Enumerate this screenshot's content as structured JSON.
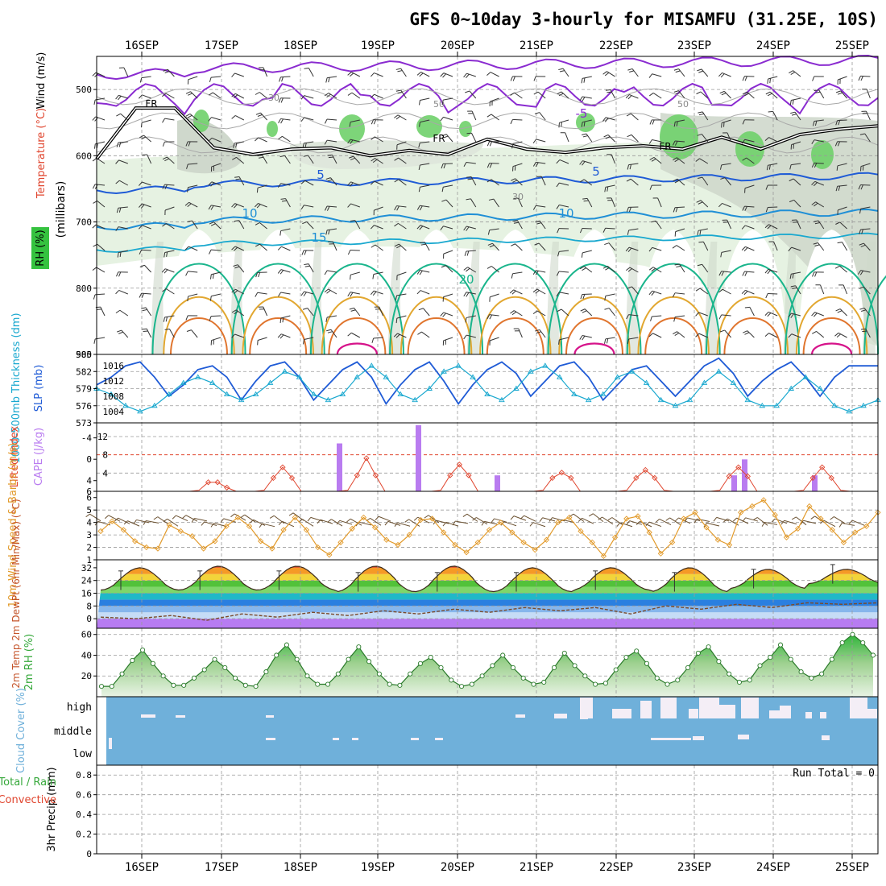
{
  "title": "GFS 0~10day 3-hourly for MISAMFU (31.25E, 10S)",
  "date_labels": [
    "16SEP",
    "17SEP",
    "18SEP",
    "19SEP",
    "20SEP",
    "21SEP",
    "22SEP",
    "23SEP",
    "24SEP",
    "25SEP"
  ],
  "colors": {
    "purple": "#8a2bd0",
    "blue": "#1f5bd6",
    "cyan": "#19a8cf",
    "teal": "#1ab58c",
    "orange": "#e29a2a",
    "red": "#e0452e",
    "green": "#35c23f",
    "ltgreen": "#e6f2e2",
    "gray": "#a8b4a8",
    "cloud": "#6fb0da",
    "magenta": "#d6138a",
    "lilac": "#b97cf0"
  },
  "chart_data": [
    {
      "type": "contour",
      "panel": "upper-air",
      "ylabel": "(millibars)",
      "legend": [
        "Wind (m/s)",
        "Temperature (°C)",
        "RH (%)"
      ],
      "y_ticks": [
        "500",
        "600",
        "700",
        "800",
        "900"
      ],
      "ylim": [
        900,
        450
      ],
      "contour_labels": [
        {
          "text": "FR",
          "color": "black"
        },
        {
          "text": "FR",
          "color": "black"
        },
        {
          "text": "FR",
          "color": "black"
        },
        {
          "text": "-5",
          "color": "purple"
        },
        {
          "text": "5",
          "color": "blue"
        },
        {
          "text": "5",
          "color": "blue"
        },
        {
          "text": "10",
          "color": "cyan"
        },
        {
          "text": "10",
          "color": "cyan"
        },
        {
          "text": "15",
          "color": "cyan"
        },
        {
          "text": "20",
          "color": "teal"
        },
        {
          "text": "30",
          "color": "gray"
        },
        {
          "text": "50",
          "color": "gray"
        },
        {
          "text": "50",
          "color": "gray"
        },
        {
          "text": "30",
          "color": "gray"
        }
      ],
      "freezing_level_mb": [
        605,
        528,
        528,
        588,
        598,
        590,
        588,
        600,
        592,
        598,
        575,
        590,
        595,
        588,
        585,
        590,
        572,
        590,
        568,
        560,
        555
      ],
      "isotherms_mb": {
        "-5": 470,
        "5": 645,
        "10": 700,
        "15": 735,
        "20": 790
      }
    },
    {
      "type": "line",
      "panel": "thickness-slp",
      "ylabel_left": "1000-500mb Thickness (dm)",
      "ylabel_right": "SLP (mb)",
      "left_ticks": [
        "585",
        "582",
        "579",
        "576",
        "573"
      ],
      "right_ticks": [
        "1016",
        "1012",
        "1008",
        "1004"
      ],
      "ylim_left": [
        573,
        585
      ],
      "ylim_right": [
        1001,
        1019
      ],
      "series": [
        {
          "name": "SLP (mb)",
          "color": "blue",
          "values": [
            1011,
            1013,
            1016,
            1017,
            1013,
            1008,
            1011,
            1015,
            1016,
            1013,
            1007,
            1012,
            1016,
            1017,
            1013,
            1007,
            1011,
            1015,
            1017,
            1013,
            1006,
            1011,
            1015,
            1017,
            1012,
            1006,
            1011,
            1015,
            1017,
            1014,
            1008,
            1012,
            1016,
            1017,
            1013,
            1007,
            1011,
            1015,
            1016,
            1012,
            1008,
            1012,
            1016,
            1018,
            1014,
            1008,
            1012,
            1015,
            1017,
            1013,
            1008,
            1013,
            1016,
            1016,
            1016
          ]
        },
        {
          "name": "1000-500mb Thickness (dm)",
          "color": "cyan",
          "values": [
            579,
            578,
            576,
            575,
            576,
            578,
            580,
            581,
            580,
            578,
            577,
            578,
            580,
            582,
            581,
            578,
            577,
            578,
            581,
            583,
            581,
            578,
            577,
            579,
            582,
            583,
            581,
            578,
            577,
            579,
            582,
            583,
            581,
            578,
            577,
            578,
            581,
            582,
            580,
            577,
            576,
            577,
            580,
            582,
            580,
            577,
            576,
            576,
            579,
            581,
            579,
            576,
            575,
            576,
            577
          ]
        }
      ]
    },
    {
      "type": "bar-line",
      "panel": "cape-li",
      "ylabel_left": "Lifted Index",
      "ylabel_right": "CAPE (J/kg)",
      "li_ticks": [
        "-4",
        "0",
        "4",
        "6"
      ],
      "cape_ticks": [
        "12",
        "8",
        "4"
      ],
      "ylim_cape": [
        0,
        15
      ],
      "cape_reference_line": 8,
      "lifted_index": [
        6,
        6,
        6,
        6,
        6,
        6,
        6,
        6,
        6,
        6,
        6,
        5.8,
        4.3,
        4.3,
        5.3,
        6,
        6,
        6,
        5.8,
        3.5,
        1.5,
        3.5,
        6,
        6,
        6,
        6,
        6,
        5.8,
        3.0,
        -0.2,
        3.0,
        6,
        6,
        6,
        6,
        6,
        6,
        5.8,
        3.0,
        1.0,
        3.0,
        6,
        6,
        6,
        6,
        6,
        6,
        6,
        5.8,
        3.5,
        2.5,
        3.5,
        6,
        6,
        6,
        6,
        6,
        5.8,
        3.5,
        2.0,
        3.5,
        5.8,
        6,
        6,
        6,
        6,
        6,
        5.8,
        3.2,
        1.5,
        3.2,
        6,
        6,
        6,
        6,
        6,
        5.8,
        3.5,
        1.5,
        3.5,
        5.8,
        6,
        6,
        6,
        6
      ],
      "cape_bars": [
        {
          "day": "18SEP",
          "value": 10.5
        },
        {
          "day": "19SEP",
          "value": 14.5
        },
        {
          "day": "20SEP",
          "value": 3.5
        },
        {
          "day": "23SEP",
          "value": 3.5
        },
        {
          "day": "23SEP",
          "value": 7.0
        },
        {
          "day": "24SEP",
          "value": 3.5
        }
      ]
    },
    {
      "type": "line",
      "panel": "wind10m",
      "ylabel": "10m Wind Speed & Barbs (m/s)",
      "y_ticks": [
        "6",
        "5",
        "4",
        "3",
        "2",
        "1"
      ],
      "ylim": [
        1,
        6.5
      ],
      "series": [
        {
          "name": "10m Wind Speed",
          "color": "orange",
          "values": [
            3.3,
            4.1,
            3.4,
            2.5,
            2.0,
            1.9,
            3.8,
            3.3,
            2.9,
            1.9,
            2.5,
            3.7,
            4.4,
            3.7,
            2.5,
            1.9,
            3.4,
            4.4,
            3.4,
            2.0,
            1.4,
            2.4,
            3.5,
            4.4,
            3.6,
            2.6,
            2.2,
            3.0,
            4.2,
            4.3,
            3.2,
            2.2,
            1.6,
            2.4,
            3.4,
            4.0,
            3.2,
            2.4,
            1.8,
            2.6,
            4.0,
            4.4,
            3.3,
            2.4,
            1.3,
            2.8,
            4.3,
            4.5,
            3.2,
            1.5,
            2.4,
            4.3,
            4.8,
            3.6,
            2.6,
            2.2,
            4.8,
            5.3,
            5.8,
            4.6,
            2.8,
            3.5,
            5.3,
            4.3,
            3.4,
            2.4,
            3.2,
            3.7,
            4.8
          ]
        }
      ]
    },
    {
      "type": "area-line",
      "panel": "temperature",
      "ylabel": "2m Temp 2m DewPt (6hr Min/Max) (°C)",
      "y_ticks": [
        "32",
        "24",
        "16",
        "8",
        "0"
      ],
      "ylim": [
        -6,
        37
      ],
      "temp_2m_daily_max": [
        32,
        33,
        33,
        33,
        33,
        32,
        32,
        32,
        31
      ],
      "temp_2m_daily_min": [
        18,
        18,
        18,
        17,
        17,
        17,
        18,
        17,
        19,
        22
      ],
      "dewpoint_2m": [
        1,
        0,
        2,
        -1,
        3,
        1,
        4,
        2,
        5,
        3,
        6,
        4,
        7,
        5,
        7,
        3,
        8,
        6,
        9,
        7,
        10,
        9,
        10
      ]
    },
    {
      "type": "area",
      "panel": "rh2m",
      "ylabel": "2m RH (%)",
      "y_ticks": [
        "60",
        "40",
        "20"
      ],
      "ylim": [
        0,
        66
      ],
      "series": [
        {
          "name": "2m RH (%)",
          "color": "green",
          "values": [
            10,
            10,
            22,
            35,
            45,
            32,
            20,
            11,
            11,
            18,
            26,
            36,
            28,
            18,
            11,
            10,
            24,
            40,
            50,
            36,
            20,
            12,
            12,
            22,
            36,
            48,
            34,
            22,
            12,
            11,
            22,
            32,
            38,
            28,
            16,
            10,
            12,
            20,
            30,
            40,
            28,
            18,
            12,
            14,
            28,
            42,
            30,
            20,
            12,
            13,
            26,
            38,
            44,
            32,
            18,
            12,
            16,
            28,
            42,
            48,
            34,
            22,
            14,
            16,
            30,
            38,
            50,
            36,
            24,
            18,
            22,
            36,
            52,
            60,
            52,
            40
          ]
        }
      ]
    },
    {
      "type": "heatmap",
      "panel": "cloud-cover",
      "ylabel": "Cloud Cover (%)",
      "row_labels": [
        "high",
        "middle",
        "low"
      ]
    },
    {
      "type": "bar",
      "panel": "precip",
      "ylabel": "3hr Precip (mm)",
      "legend": [
        "Total / Rain",
        "Convective"
      ],
      "run_total": "Run Total = 0",
      "y_ticks": [
        "0.8",
        "0.6",
        "0.4",
        "0.2",
        "0"
      ],
      "ylim": [
        0,
        0.9
      ],
      "values": []
    }
  ]
}
